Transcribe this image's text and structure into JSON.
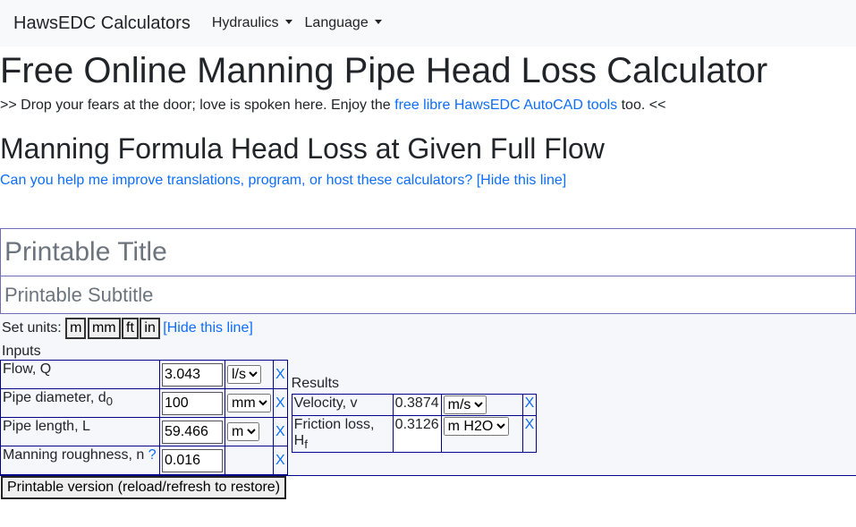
{
  "navbar": {
    "brand": "HawsEDC Calculators",
    "menus": [
      "Hydraulics",
      "Language"
    ]
  },
  "header": {
    "title": "Free Online Manning Pipe Head Loss Calculator",
    "tagline_before": ">> Drop your fears at the door; love is spoken here. Enjoy the",
    "tagline_link": "free libre HawsEDC AutoCAD tools",
    "tagline_after": "too. <<"
  },
  "subtitle": "Manning Formula Head Loss at Given Full Flow",
  "help_line": {
    "text": "Can you help me improve translations, program, or host these calculators?",
    "hide": "[Hide this line]"
  },
  "printable": {
    "title_placeholder": "Printable Title",
    "subtitle_placeholder": "Printable Subtitle"
  },
  "units": {
    "label": "Set units:",
    "buttons": [
      "m",
      "mm",
      "ft",
      "in"
    ],
    "hide": "[Hide this line]"
  },
  "clear_label": "X",
  "inputs": {
    "heading": "Inputs",
    "rows": [
      {
        "label": "Flow, Q",
        "value": 3.043,
        "unit": "l/s"
      },
      {
        "label": "Pipe diameter, d",
        "sub": "0",
        "value": 100,
        "unit": "mm"
      },
      {
        "label": "Pipe length, L",
        "value": 59.466,
        "unit": "m"
      },
      {
        "label": "Manning roughness, n",
        "help": "?",
        "value": 0.016
      }
    ]
  },
  "results": {
    "heading": "Results",
    "rows": [
      {
        "label": "Velocity, v",
        "value": 0.3874,
        "unit": "m/s"
      },
      {
        "label": "Friction loss, H",
        "sub": "f",
        "value": 0.3126,
        "unit": "m H2O"
      }
    ]
  },
  "print_button": "Printable version (reload/refresh to restore)"
}
